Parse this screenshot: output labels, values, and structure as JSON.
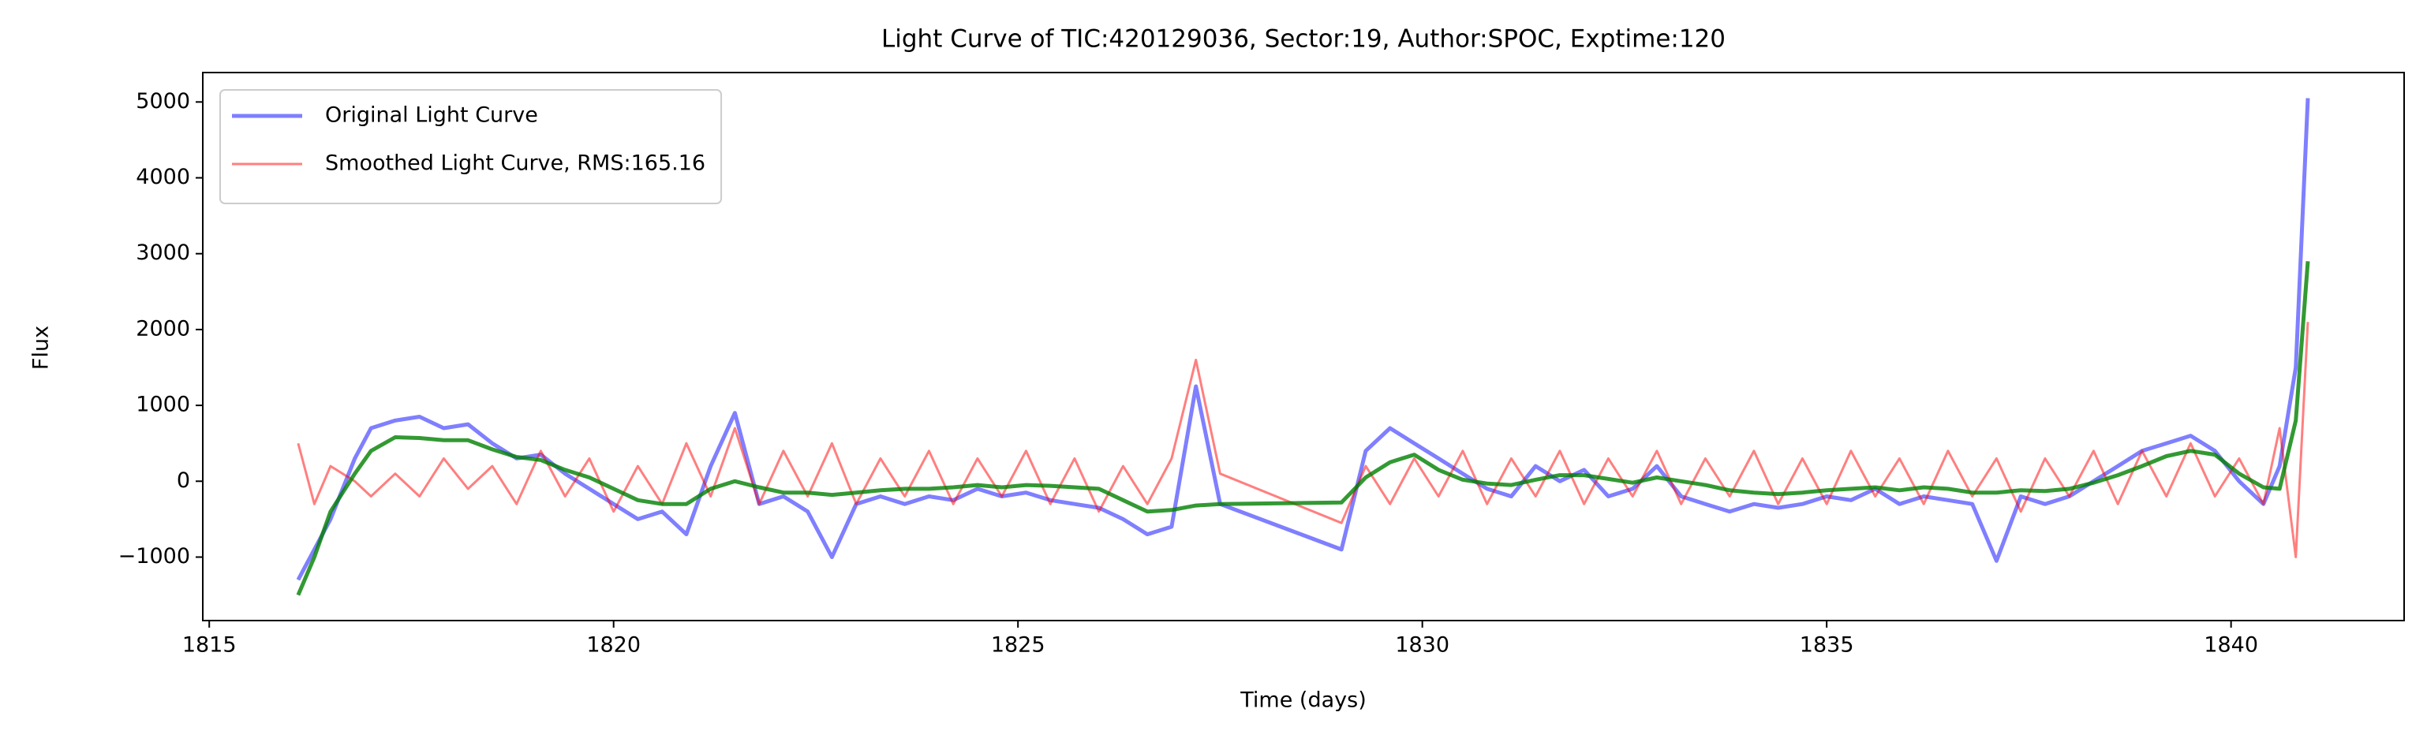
{
  "chart_data": {
    "type": "line",
    "title": "Light Curve of TIC:420129036, Sector:19, Author:SPOC, Exptime:120",
    "xlabel": "Time (days)",
    "ylabel": "Flux",
    "legend": "upper left",
    "grid": false,
    "xlim": [
      1814.92,
      1842.14
    ],
    "ylim": [
      -1837,
      5388
    ],
    "xticks": [
      1815,
      1820,
      1825,
      1830,
      1835,
      1840
    ],
    "yticks": [
      {
        "value": -1000,
        "label": "−1000"
      },
      0,
      1000,
      2000,
      3000,
      4000,
      5000
    ],
    "x": [
      1816.1,
      1816.3,
      1816.5,
      1816.8,
      1817.0,
      1817.3,
      1817.6,
      1817.9,
      1818.2,
      1818.5,
      1818.8,
      1819.1,
      1819.4,
      1819.7,
      1820.0,
      1820.3,
      1820.6,
      1820.9,
      1821.2,
      1821.5,
      1821.8,
      1822.1,
      1822.4,
      1822.7,
      1823.0,
      1823.3,
      1823.6,
      1823.9,
      1824.2,
      1824.5,
      1824.8,
      1825.1,
      1825.4,
      1825.7,
      1826.0,
      1826.3,
      1826.6,
      1826.9,
      1827.2,
      1827.5,
      1829.0,
      1829.3,
      1829.6,
      1829.9,
      1830.2,
      1830.5,
      1830.8,
      1831.1,
      1831.4,
      1831.7,
      1832.0,
      1832.3,
      1832.6,
      1832.9,
      1833.2,
      1833.5,
      1833.8,
      1834.1,
      1834.4,
      1834.7,
      1835.0,
      1835.3,
      1835.6,
      1835.9,
      1836.2,
      1836.5,
      1836.8,
      1837.1,
      1837.4,
      1837.7,
      1838.0,
      1838.3,
      1838.6,
      1838.9,
      1839.2,
      1839.5,
      1839.8,
      1840.1,
      1840.4,
      1840.6,
      1840.8,
      1840.95
    ],
    "series": [
      {
        "name": "Original Light Curve",
        "color": "blue",
        "alpha": 0.5,
        "values": [
          -1300,
          -900,
          -500,
          300,
          700,
          800,
          850,
          700,
          750,
          500,
          300,
          350,
          100,
          -100,
          -300,
          -500,
          -400,
          -700,
          200,
          900,
          -300,
          -200,
          -400,
          -1000,
          -300,
          -200,
          -300,
          -200,
          -250,
          -100,
          -200,
          -150,
          -250,
          -300,
          -350,
          -500,
          -700,
          -600,
          1250,
          -300,
          -900,
          400,
          700,
          500,
          300,
          100,
          -100,
          -200,
          200,
          0,
          150,
          -200,
          -100,
          200,
          -200,
          -300,
          -400,
          -300,
          -350,
          -300,
          -200,
          -250,
          -100,
          -300,
          -200,
          -250,
          -300,
          -1050,
          -200,
          -300,
          -200,
          0,
          200,
          400,
          500,
          600,
          400,
          0,
          -300,
          200,
          1500,
          5050
        ]
      },
      {
        "name": "Smoothed Light Curve, RMS:165.16",
        "color": "red",
        "alpha": 0.5,
        "values": [
          500,
          -300,
          200,
          0,
          -200,
          100,
          -200,
          300,
          -100,
          200,
          -300,
          400,
          -200,
          300,
          -400,
          200,
          -300,
          500,
          -200,
          700,
          -300,
          400,
          -200,
          500,
          -300,
          300,
          -200,
          400,
          -300,
          300,
          -200,
          400,
          -300,
          300,
          -400,
          200,
          -300,
          300,
          1600,
          100,
          -550,
          200,
          -300,
          300,
          -200,
          400,
          -300,
          300,
          -200,
          400,
          -300,
          300,
          -200,
          400,
          -300,
          300,
          -200,
          400,
          -300,
          300,
          -300,
          400,
          -200,
          300,
          -300,
          400,
          -200,
          300,
          -400,
          300,
          -200,
          400,
          -300,
          400,
          -200,
          500,
          -200,
          300,
          -300,
          700,
          -1000,
          2100
        ]
      },
      {
        "color": "green",
        "alpha": 0.8,
        "values": [
          -1500,
          -1000,
          -400,
          100,
          400,
          580,
          570,
          540,
          540,
          420,
          320,
          280,
          150,
          50,
          -100,
          -250,
          -300,
          -300,
          -100,
          0,
          -80,
          -150,
          -150,
          -180,
          -150,
          -120,
          -100,
          -100,
          -80,
          -50,
          -80,
          -50,
          -60,
          -80,
          -100,
          -250,
          -400,
          -380,
          -320,
          -300,
          -280,
          50,
          250,
          350,
          150,
          20,
          -30,
          -50,
          20,
          80,
          80,
          30,
          -20,
          50,
          0,
          -50,
          -120,
          -150,
          -170,
          -150,
          -120,
          -100,
          -80,
          -120,
          -80,
          -100,
          -150,
          -150,
          -120,
          -130,
          -100,
          -20,
          80,
          200,
          330,
          400,
          350,
          100,
          -80,
          -100,
          800,
          2900
        ]
      }
    ]
  }
}
